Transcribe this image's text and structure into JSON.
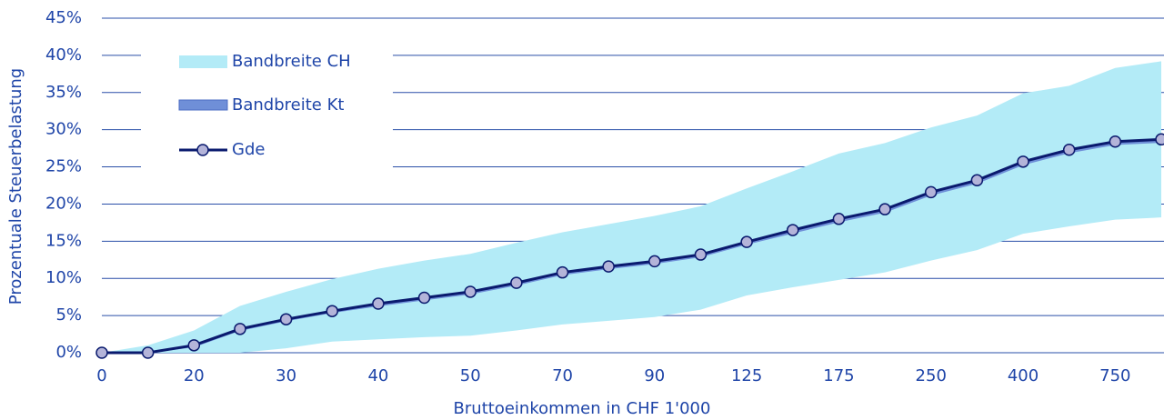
{
  "chart_data": {
    "type": "line",
    "x_label": "Bruttoeinkommen in CHF 1'000",
    "y_label": "Prozentuale Steuerbelastung",
    "categories": [
      "0",
      null,
      "20",
      null,
      "30",
      null,
      "40",
      null,
      "50",
      null,
      "70",
      null,
      "90",
      null,
      "125",
      null,
      "175",
      null,
      "250",
      null,
      "400",
      null,
      "750",
      null
    ],
    "series": [
      {
        "name": "Bandbreite CH",
        "color": "#b3ebf7",
        "lower": [
          0,
          0,
          0,
          0,
          0.6,
          1.5,
          1.8,
          2.1,
          2.3,
          3.0,
          3.8,
          4.3,
          4.8,
          5.8,
          7.7,
          8.8,
          9.8,
          10.8,
          12.4,
          13.8,
          16.0,
          17.0,
          17.9,
          18.2
        ],
        "upper": [
          0,
          1.0,
          3.0,
          6.3,
          8.2,
          9.9,
          11.3,
          12.4,
          13.3,
          14.8,
          16.2,
          17.3,
          18.4,
          19.7,
          22.1,
          24.4,
          26.8,
          28.2,
          30.3,
          31.9,
          34.9,
          35.9,
          38.3,
          39.2
        ]
      },
      {
        "name": "Bandbreite Kt",
        "color": "#6f8fd8",
        "lower": [
          0,
          0,
          0.8,
          3.0,
          4.3,
          5.4,
          6.3,
          7.1,
          7.9,
          9.1,
          10.5,
          11.3,
          12.0,
          12.9,
          14.6,
          16.1,
          17.6,
          18.9,
          21.2,
          22.8,
          25.3,
          26.9,
          28.0,
          28.3
        ],
        "upper": [
          0,
          0,
          1.0,
          3.2,
          4.5,
          5.6,
          6.6,
          7.4,
          8.2,
          9.4,
          10.8,
          11.6,
          12.3,
          13.2,
          14.9,
          16.5,
          18.0,
          19.3,
          21.6,
          23.2,
          25.7,
          27.3,
          28.4,
          28.7
        ]
      },
      {
        "name": "Gde",
        "color": "#0a1a6e",
        "marker_color": "#b4b4d9",
        "values": [
          0,
          0,
          1.0,
          3.2,
          4.5,
          5.6,
          6.6,
          7.4,
          8.2,
          9.4,
          10.8,
          11.6,
          12.3,
          13.2,
          14.9,
          16.5,
          18.0,
          19.3,
          21.6,
          23.2,
          25.7,
          27.3,
          28.4,
          28.7
        ]
      }
    ],
    "ylim": [
      0,
      45
    ],
    "yticks": [
      {
        "value": 0,
        "label": "0%"
      },
      {
        "value": 5,
        "label": "5%"
      },
      {
        "value": 10,
        "label": "10%"
      },
      {
        "value": 15,
        "label": "15%"
      },
      {
        "value": 20,
        "label": "20%"
      },
      {
        "value": 25,
        "label": "25%"
      },
      {
        "value": 30,
        "label": "30%"
      },
      {
        "value": 35,
        "label": "35%"
      },
      {
        "value": 40,
        "label": "40%"
      },
      {
        "value": 45,
        "label": "45%"
      }
    ],
    "grid": true,
    "legend": "upper left"
  }
}
